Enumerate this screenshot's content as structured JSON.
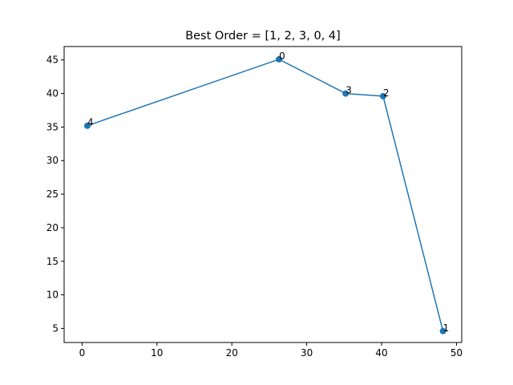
{
  "chart_data": {
    "type": "line",
    "title": "Best Order = [1, 2, 3, 0, 4]",
    "xlabel": "",
    "ylabel": "",
    "xlim": [
      -2.4,
      50.7
    ],
    "ylim": [
      2.9,
      47.0
    ],
    "x_ticks": [
      0,
      10,
      20,
      30,
      40,
      50
    ],
    "y_ticks": [
      5,
      10,
      15,
      20,
      25,
      30,
      35,
      40,
      45
    ],
    "grid": false,
    "series": [
      {
        "color": "#1f77b4",
        "points": [
          {
            "label": "1",
            "x": 48.2,
            "y": 4.6
          },
          {
            "label": "2",
            "x": 40.2,
            "y": 39.6
          },
          {
            "label": "3",
            "x": 35.2,
            "y": 40.0
          },
          {
            "label": "0",
            "x": 26.3,
            "y": 45.1
          },
          {
            "label": "4",
            "x": 0.7,
            "y": 35.2
          }
        ]
      }
    ]
  }
}
